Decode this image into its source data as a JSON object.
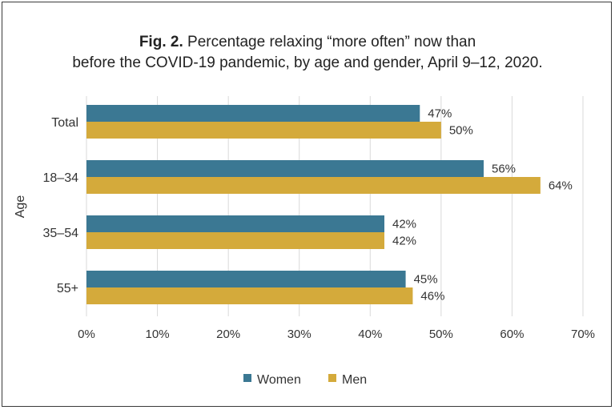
{
  "title": {
    "prefix": "Fig. 2.",
    "line1": "Percentage relaxing “more often” now than",
    "line2": "before the COVID-19 pandemic, by age and gender, April 9–12, 2020."
  },
  "chart_data": {
    "type": "bar",
    "orientation": "horizontal",
    "categories": [
      "Total",
      "18–34",
      "35–54",
      "55+"
    ],
    "series": [
      {
        "name": "Women",
        "values": [
          47,
          56,
          42,
          45
        ],
        "color": "#3b7893"
      },
      {
        "name": "Men",
        "values": [
          50,
          64,
          42,
          46
        ],
        "color": "#d4aa3b"
      }
    ],
    "value_labels": {
      "Women": [
        "47%",
        "56%",
        "42%",
        "45%"
      ],
      "Men": [
        "50%",
        "64%",
        "42%",
        "46%"
      ]
    },
    "xlim": [
      0,
      70
    ],
    "x_ticks": [
      0,
      10,
      20,
      30,
      40,
      50,
      60,
      70
    ],
    "x_tick_labels": [
      "0%",
      "10%",
      "20%",
      "30%",
      "40%",
      "50%",
      "60%",
      "70%"
    ],
    "ylabel": "Age",
    "grid": "vertical",
    "legend_position": "bottom"
  }
}
